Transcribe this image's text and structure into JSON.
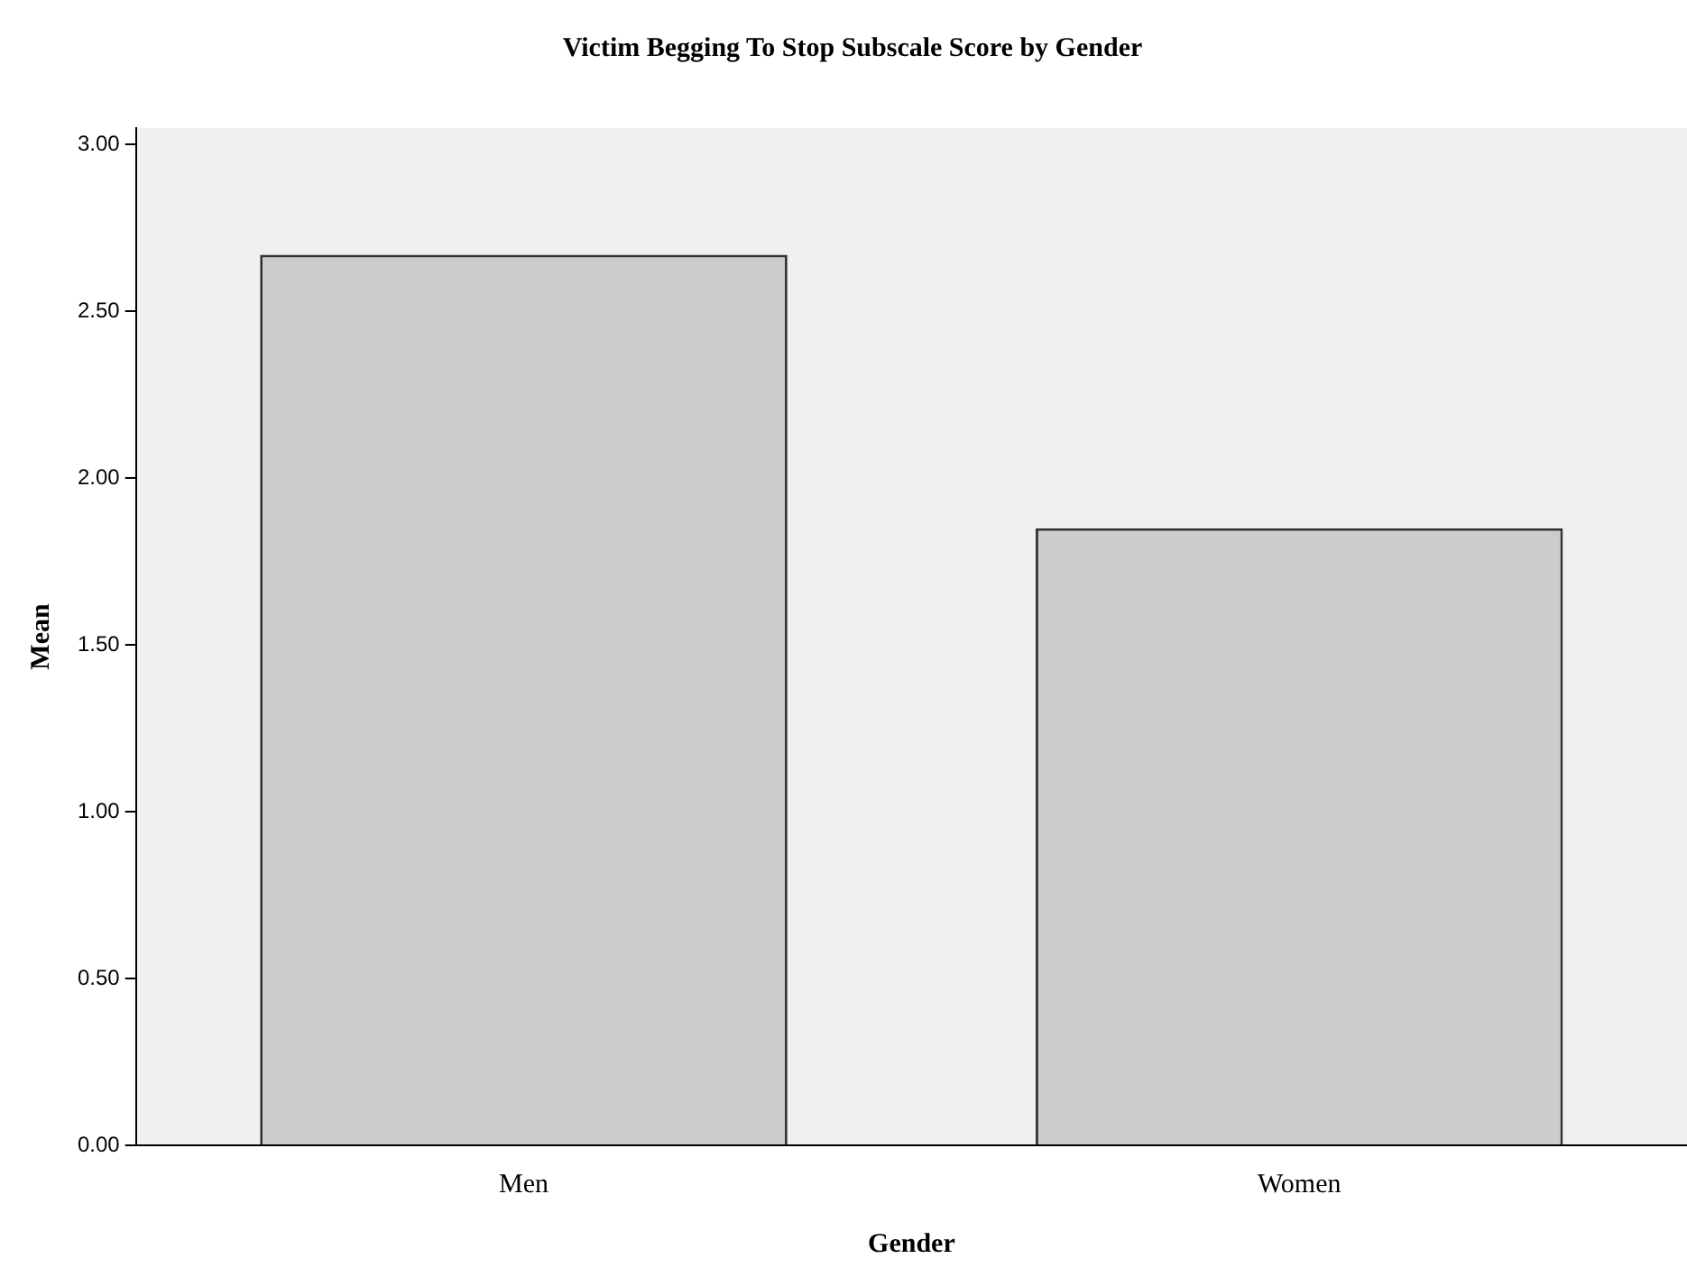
{
  "chart_data": {
    "type": "bar",
    "title": "Victim Begging To Stop Subscale Score by Gender",
    "xlabel": "Gender",
    "ylabel": "Mean",
    "categories": [
      "Men",
      "Women"
    ],
    "values": [
      2.67,
      1.85
    ],
    "color": "#cccccc",
    "ylim": [
      0,
      3.05
    ],
    "yticks": [
      {
        "value": 0,
        "label": "0.00"
      },
      {
        "value": 0.5,
        "label": "0.50"
      },
      {
        "value": 1,
        "label": "1.00"
      },
      {
        "value": 1.5,
        "label": "1.50"
      },
      {
        "value": 2,
        "label": "2.00"
      },
      {
        "value": 2.5,
        "label": "2.50"
      },
      {
        "value": 3,
        "label": "3.00"
      }
    ],
    "grid": false,
    "legend": false
  }
}
